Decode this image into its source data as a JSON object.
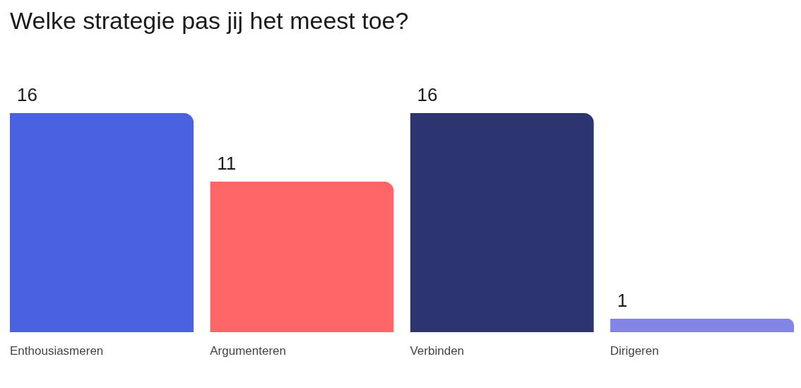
{
  "chart_data": {
    "type": "bar",
    "title": "Welke strategie pas jij het meest toe?",
    "categories": [
      "Enthousiasmeren",
      "Argumenteren",
      "Verbinden",
      "Dirigeren"
    ],
    "values": [
      16,
      11,
      16,
      1
    ],
    "colors": [
      "#4b62e0",
      "#fe6667",
      "#2c3570",
      "#8284e6"
    ],
    "data_labels": true,
    "grid": false
  }
}
